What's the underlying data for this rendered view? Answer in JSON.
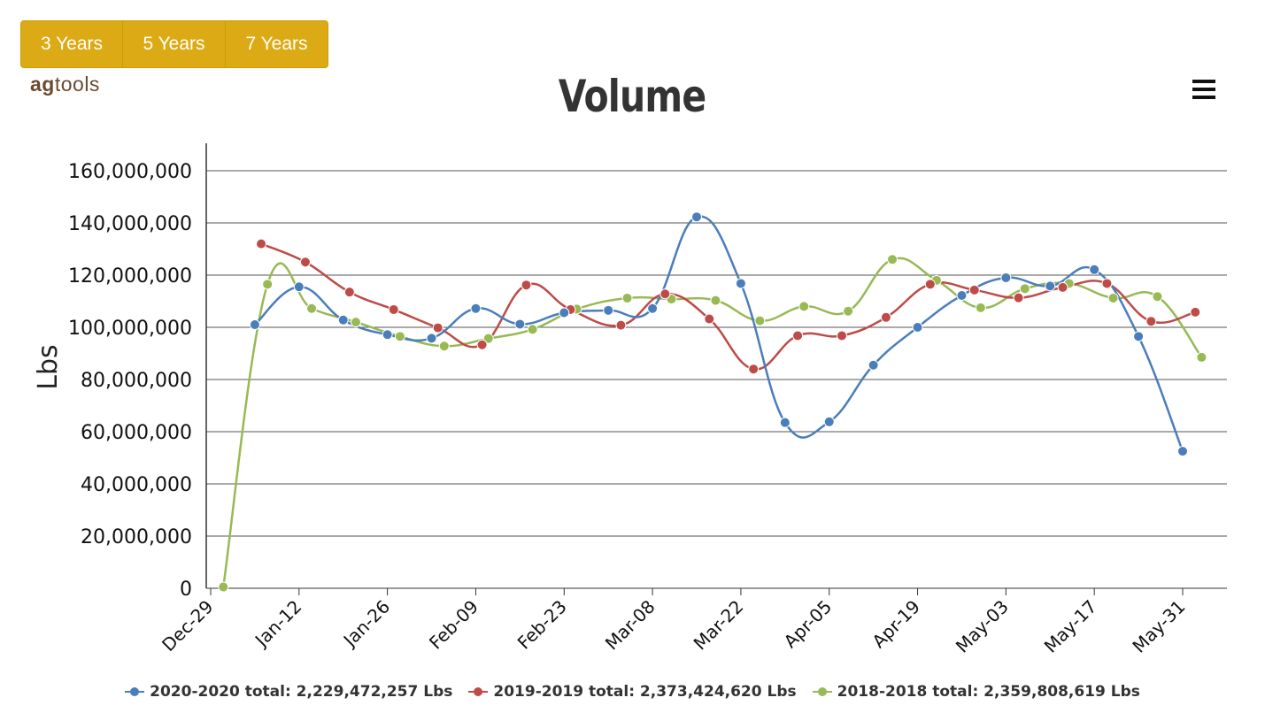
{
  "range_buttons": [
    "3 Years",
    "5 Years",
    "7 Years"
  ],
  "logo": {
    "bold": "ag",
    "rest": "tools"
  },
  "menu_icon": "hamburger-menu-icon",
  "chart_data": {
    "type": "line",
    "title": "Volume",
    "ylabel": "Lbs",
    "xlabel": "",
    "ylim": [
      0,
      160000000
    ],
    "y_ticks": [
      "0",
      "20,000,000",
      "40,000,000",
      "60,000,000",
      "80,000,000",
      "100,000,000",
      "120,000,000",
      "140,000,000",
      "160,000,000"
    ],
    "x_ticks": [
      "Dec-29",
      "Jan-12",
      "Jan-26",
      "Feb-09",
      "Feb-23",
      "Mar-08",
      "Mar-22",
      "Apr-05",
      "Apr-19",
      "May-03",
      "May-17",
      "May-31"
    ],
    "grid": true,
    "legend_position": "bottom",
    "series": [
      {
        "name": "2020-2020 total: 2,229,472,257 Lbs",
        "color": "#4a7ebb",
        "x": [
          "Jan-05",
          "Jan-12",
          "Jan-19",
          "Jan-26",
          "Feb-02",
          "Feb-09",
          "Feb-16",
          "Feb-23",
          "Mar-01",
          "Mar-08",
          "Mar-15",
          "Mar-22",
          "Mar-29",
          "Apr-05",
          "Apr-12",
          "Apr-19",
          "Apr-26",
          "May-03",
          "May-10",
          "May-17",
          "May-24",
          "May-31"
        ],
        "values": [
          101000000,
          115500000,
          102800000,
          97200000,
          95800000,
          107200000,
          101200000,
          105600000,
          106500000,
          107200000,
          142300000,
          116800000,
          63500000,
          63800000,
          85500000,
          100000000,
          112200000,
          119000000,
          115800000,
          122100000,
          96500000,
          52500000
        ]
      },
      {
        "name": "2019-2019 total: 2,373,424,620 Lbs",
        "color": "#be4b48",
        "x": [
          "Jan-06",
          "Jan-13",
          "Jan-20",
          "Jan-27",
          "Feb-03",
          "Feb-10",
          "Feb-17",
          "Feb-24",
          "Mar-03",
          "Mar-10",
          "Mar-17",
          "Mar-24",
          "Mar-31",
          "Apr-07",
          "Apr-14",
          "Apr-21",
          "Apr-28",
          "May-05",
          "May-12",
          "May-19",
          "May-26",
          "Jun-02"
        ],
        "values": [
          132000000,
          125000000,
          113500000,
          106800000,
          99800000,
          93300000,
          116200000,
          106800000,
          100800000,
          112800000,
          103200000,
          84000000,
          96800000,
          96800000,
          103800000,
          116500000,
          114300000,
          111300000,
          115300000,
          116800000,
          102300000,
          105800000
        ]
      },
      {
        "name": "2018-2018 total: 2,359,808,619 Lbs",
        "color": "#98b954",
        "x": [
          "Dec-31",
          "Jan-07",
          "Jan-14",
          "Jan-21",
          "Jan-28",
          "Feb-04",
          "Feb-11",
          "Feb-18",
          "Feb-25",
          "Mar-04",
          "Mar-11",
          "Mar-18",
          "Mar-25",
          "Apr-01",
          "Apr-08",
          "Apr-15",
          "Apr-22",
          "Apr-29",
          "May-06",
          "May-13",
          "May-20",
          "May-27",
          "Jun-03"
        ],
        "values": [
          500000,
          116500000,
          107200000,
          102000000,
          96500000,
          92800000,
          95700000,
          99200000,
          107000000,
          111200000,
          110800000,
          110300000,
          102500000,
          108000000,
          106200000,
          126000000,
          118000000,
          107500000,
          114800000,
          116800000,
          111200000,
          111800000,
          88500000
        ]
      }
    ]
  }
}
